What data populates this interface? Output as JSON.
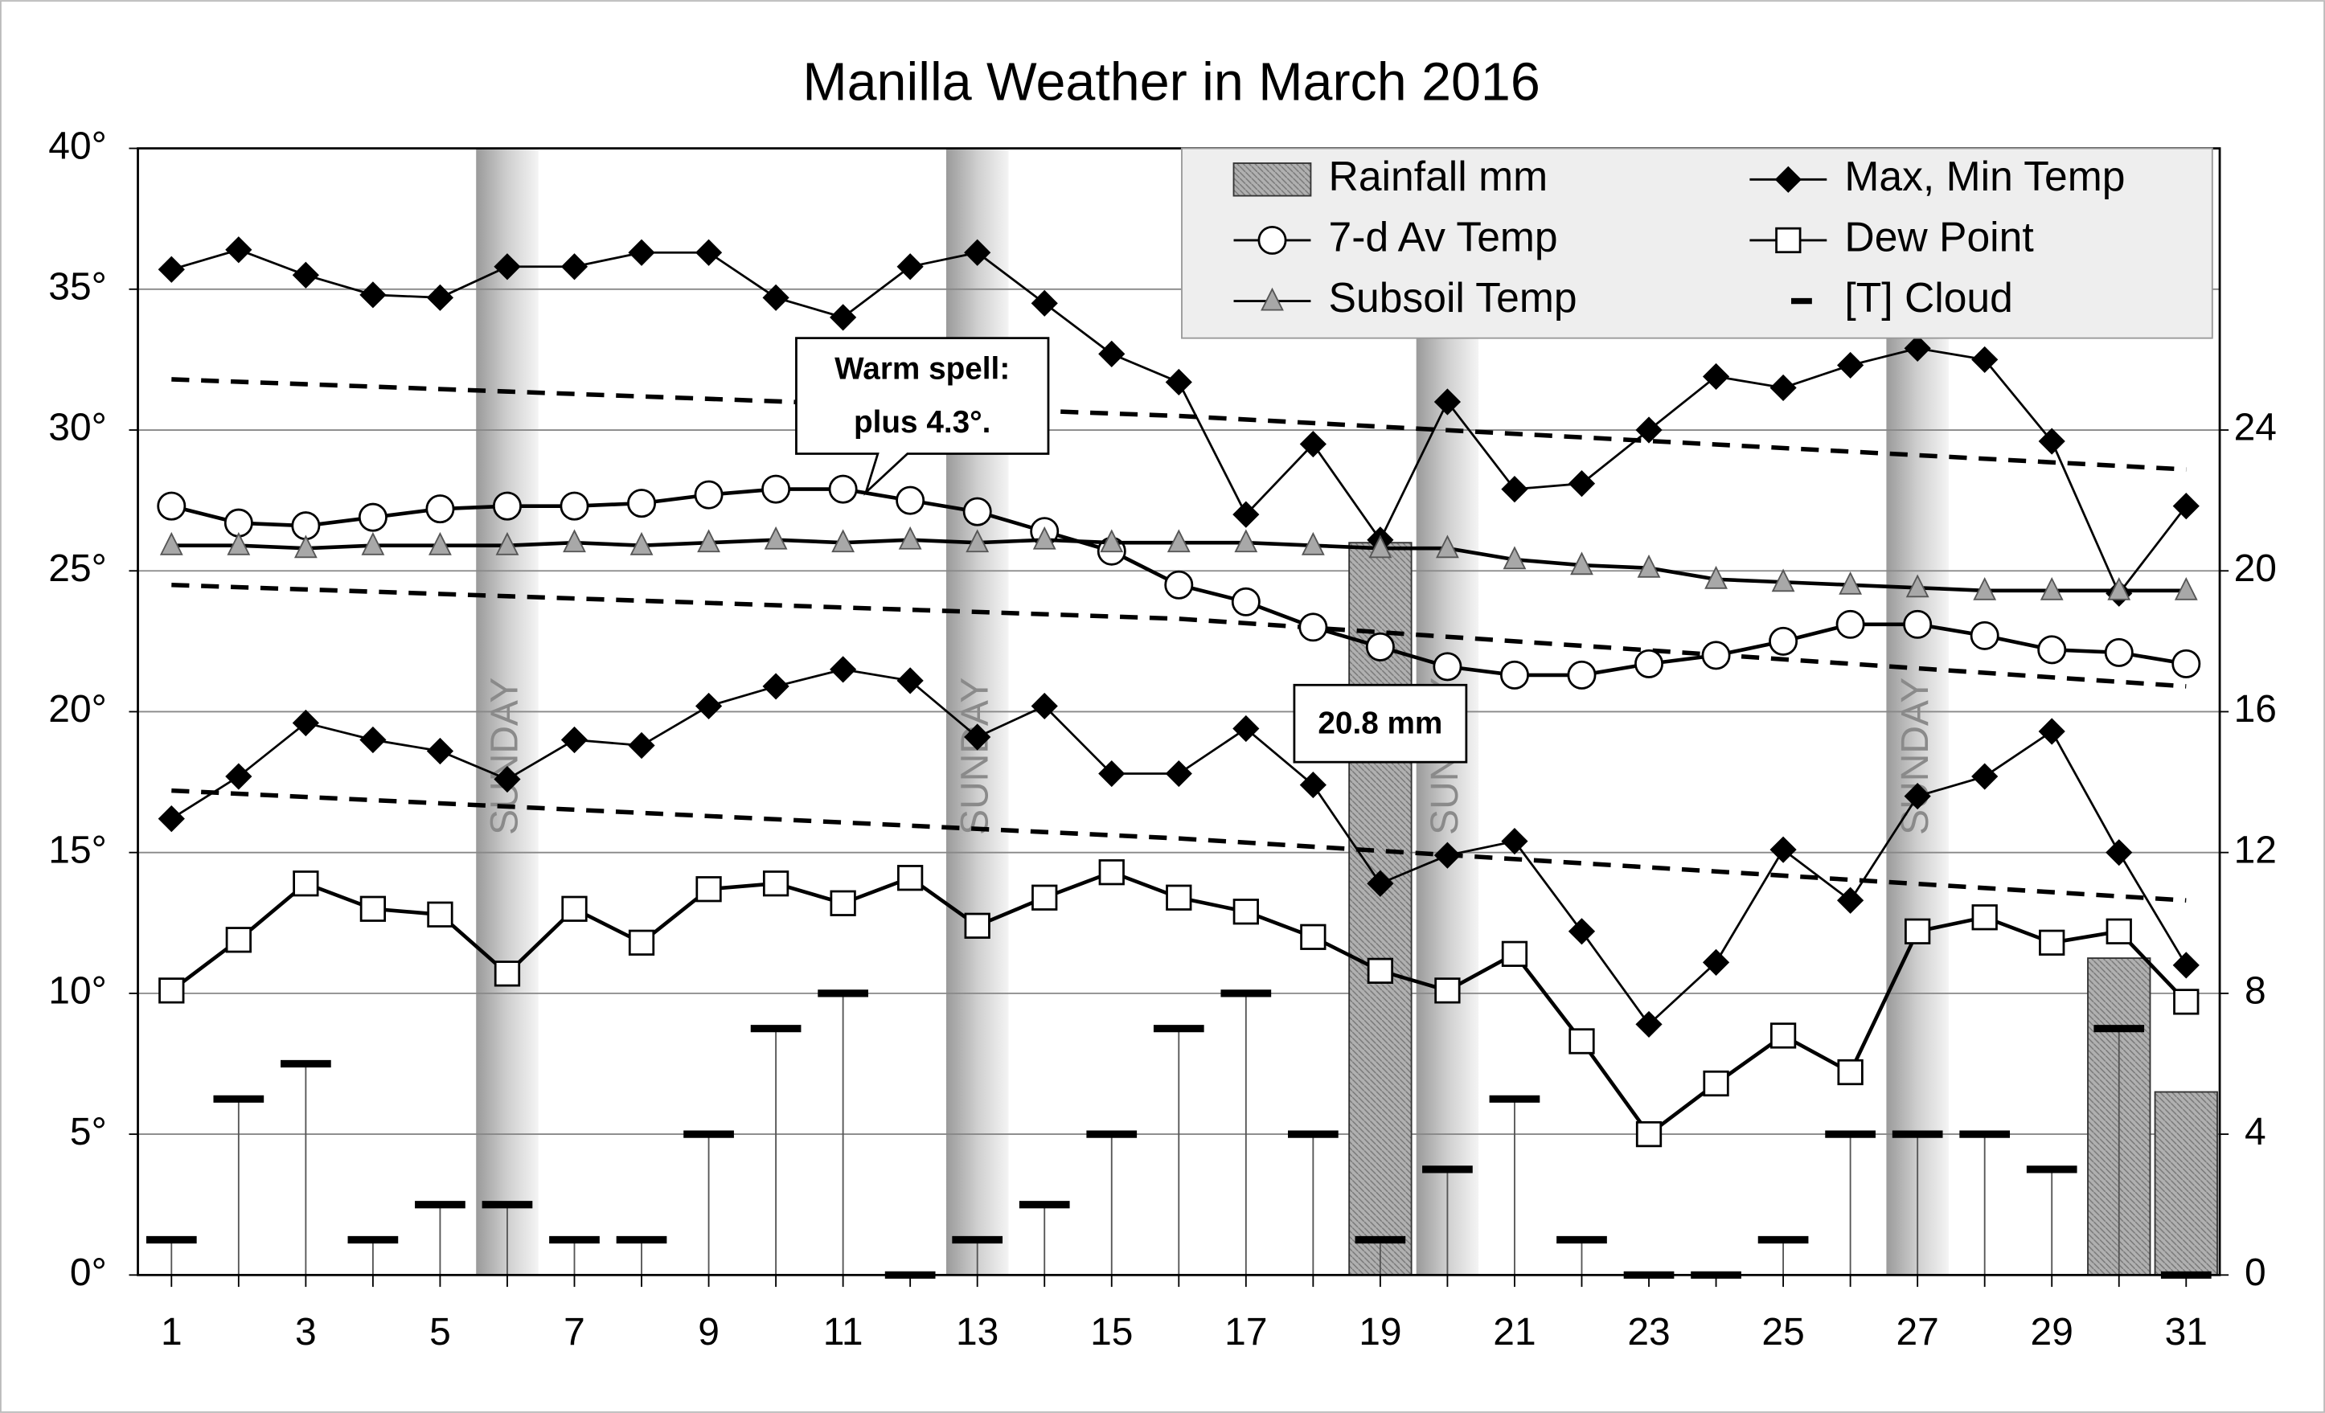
{
  "chart_data": {
    "type": "combo",
    "title": "Manilla Weather in March 2016",
    "x": [
      1,
      2,
      3,
      4,
      5,
      6,
      7,
      8,
      9,
      10,
      11,
      12,
      13,
      14,
      15,
      16,
      17,
      18,
      19,
      20,
      21,
      22,
      23,
      24,
      25,
      26,
      27,
      28,
      29,
      30,
      31
    ],
    "xlim": [
      0.5,
      31.5
    ],
    "xticks": [
      1,
      3,
      5,
      7,
      9,
      11,
      13,
      15,
      17,
      19,
      21,
      23,
      25,
      27,
      29,
      31
    ],
    "ylim": [
      0,
      40
    ],
    "yticks": [
      {
        "value": 0,
        "label": "0°"
      },
      {
        "value": 5,
        "label": "5°"
      },
      {
        "value": 10,
        "label": "10°"
      },
      {
        "value": 15,
        "label": "15°"
      },
      {
        "value": 20,
        "label": "20°"
      },
      {
        "value": 25,
        "label": "25°"
      },
      {
        "value": 30,
        "label": "30°"
      },
      {
        "value": 35,
        "label": "35°"
      },
      {
        "value": 40,
        "label": "40°"
      }
    ],
    "y2lim": [
      0,
      32
    ],
    "y2ticks": [
      0,
      4,
      8,
      12,
      16,
      20,
      24
    ],
    "grid": true,
    "legend": "top-right",
    "series": [
      {
        "name": "Rainfall mm",
        "kind": "bar",
        "axis": "y2",
        "color": "#b0b0b0",
        "values": [
          0,
          0,
          0,
          0,
          0,
          0,
          0,
          0,
          0,
          0,
          0,
          0,
          0,
          0,
          0,
          0,
          0,
          0,
          20.8,
          0,
          0,
          0,
          0,
          0,
          0,
          0,
          0,
          0,
          0,
          9.0,
          5.2
        ],
        "value_labels": [
          null,
          null,
          null,
          null,
          null,
          null,
          null,
          null,
          null,
          null,
          null,
          null,
          null,
          null,
          null,
          null,
          null,
          null,
          "20.8 mm",
          null,
          null,
          null,
          null,
          null,
          null,
          null,
          null,
          null,
          null,
          null,
          null
        ]
      },
      {
        "name": "Max, Min Temp",
        "kind": "diamond",
        "color": "#000000",
        "values": [
          35.7,
          36.4,
          35.5,
          34.8,
          34.7,
          35.8,
          35.8,
          36.3,
          36.3,
          34.7,
          34.0,
          35.8,
          36.3,
          34.5,
          32.7,
          31.7,
          27.0,
          29.5,
          26.1,
          31.0,
          27.9,
          28.1,
          30.0,
          31.9,
          31.5,
          32.3,
          32.9,
          32.5,
          29.6,
          24.2,
          27.3
        ],
        "low": [
          16.2,
          17.7,
          19.6,
          19.0,
          18.6,
          17.6,
          19.0,
          18.8,
          20.2,
          20.9,
          21.5,
          21.1,
          19.1,
          20.2,
          17.8,
          17.8,
          19.4,
          17.4,
          13.9,
          14.9,
          15.4,
          12.2,
          8.9,
          11.1,
          15.1,
          13.3,
          17.0,
          17.7,
          19.3,
          15.0,
          11.0
        ]
      },
      {
        "name": "7-d Av Temp",
        "kind": "circle",
        "color": "#000000",
        "values": [
          27.3,
          26.7,
          26.6,
          26.9,
          27.2,
          27.3,
          27.3,
          27.4,
          27.7,
          27.9,
          27.9,
          27.5,
          27.1,
          26.4,
          25.7,
          24.5,
          23.9,
          23.0,
          22.3,
          21.6,
          21.3,
          21.3,
          21.7,
          22.0,
          22.5,
          23.1,
          23.1,
          22.7,
          22.2,
          22.1,
          21.7
        ]
      },
      {
        "name": "Dew Point",
        "kind": "square",
        "color": "#000000",
        "values": [
          10.1,
          11.9,
          13.9,
          13.0,
          12.8,
          10.7,
          13.0,
          11.8,
          13.7,
          13.9,
          13.2,
          14.1,
          12.4,
          13.4,
          14.3,
          13.4,
          12.9,
          12.0,
          10.8,
          10.1,
          11.4,
          8.3,
          5.0,
          6.8,
          8.5,
          7.2,
          12.2,
          12.7,
          11.8,
          12.2,
          9.7
        ]
      },
      {
        "name": "Subsoil Temp",
        "kind": "triangle",
        "color": "#a8a8a8",
        "values": [
          25.9,
          25.9,
          25.8,
          25.9,
          25.9,
          25.9,
          26.0,
          25.9,
          26.0,
          26.1,
          26.0,
          26.1,
          26.0,
          26.1,
          26.0,
          26.0,
          26.0,
          25.9,
          25.8,
          25.8,
          25.4,
          25.2,
          25.1,
          24.7,
          24.6,
          24.5,
          24.4,
          24.3,
          24.3,
          24.3,
          24.3
        ]
      },
      {
        "name": "[T] Cloud",
        "kind": "dash",
        "axis": "y2",
        "color": "#000000",
        "values": [
          1,
          5,
          6,
          1,
          2,
          2,
          1,
          1,
          4,
          7,
          8,
          0,
          1,
          2,
          4,
          7,
          8,
          4,
          1,
          3,
          5,
          1,
          0,
          0,
          1,
          4,
          4,
          4,
          3,
          7,
          0
        ]
      }
    ],
    "normals": [
      {
        "x": [
          1,
          16,
          31
        ],
        "values": [
          31.8,
          30.5,
          28.6
        ]
      },
      {
        "x": [
          1,
          16,
          31
        ],
        "values": [
          24.5,
          23.3,
          20.9
        ]
      },
      {
        "x": [
          1,
          16,
          31
        ],
        "values": [
          17.2,
          15.5,
          13.3
        ]
      }
    ],
    "sunday": {
      "label": "SUNDAY",
      "days": [
        6,
        13,
        20,
        27
      ]
    },
    "annotation": {
      "lines": [
        "Warm spell:",
        "plus 4.3°."
      ]
    }
  }
}
